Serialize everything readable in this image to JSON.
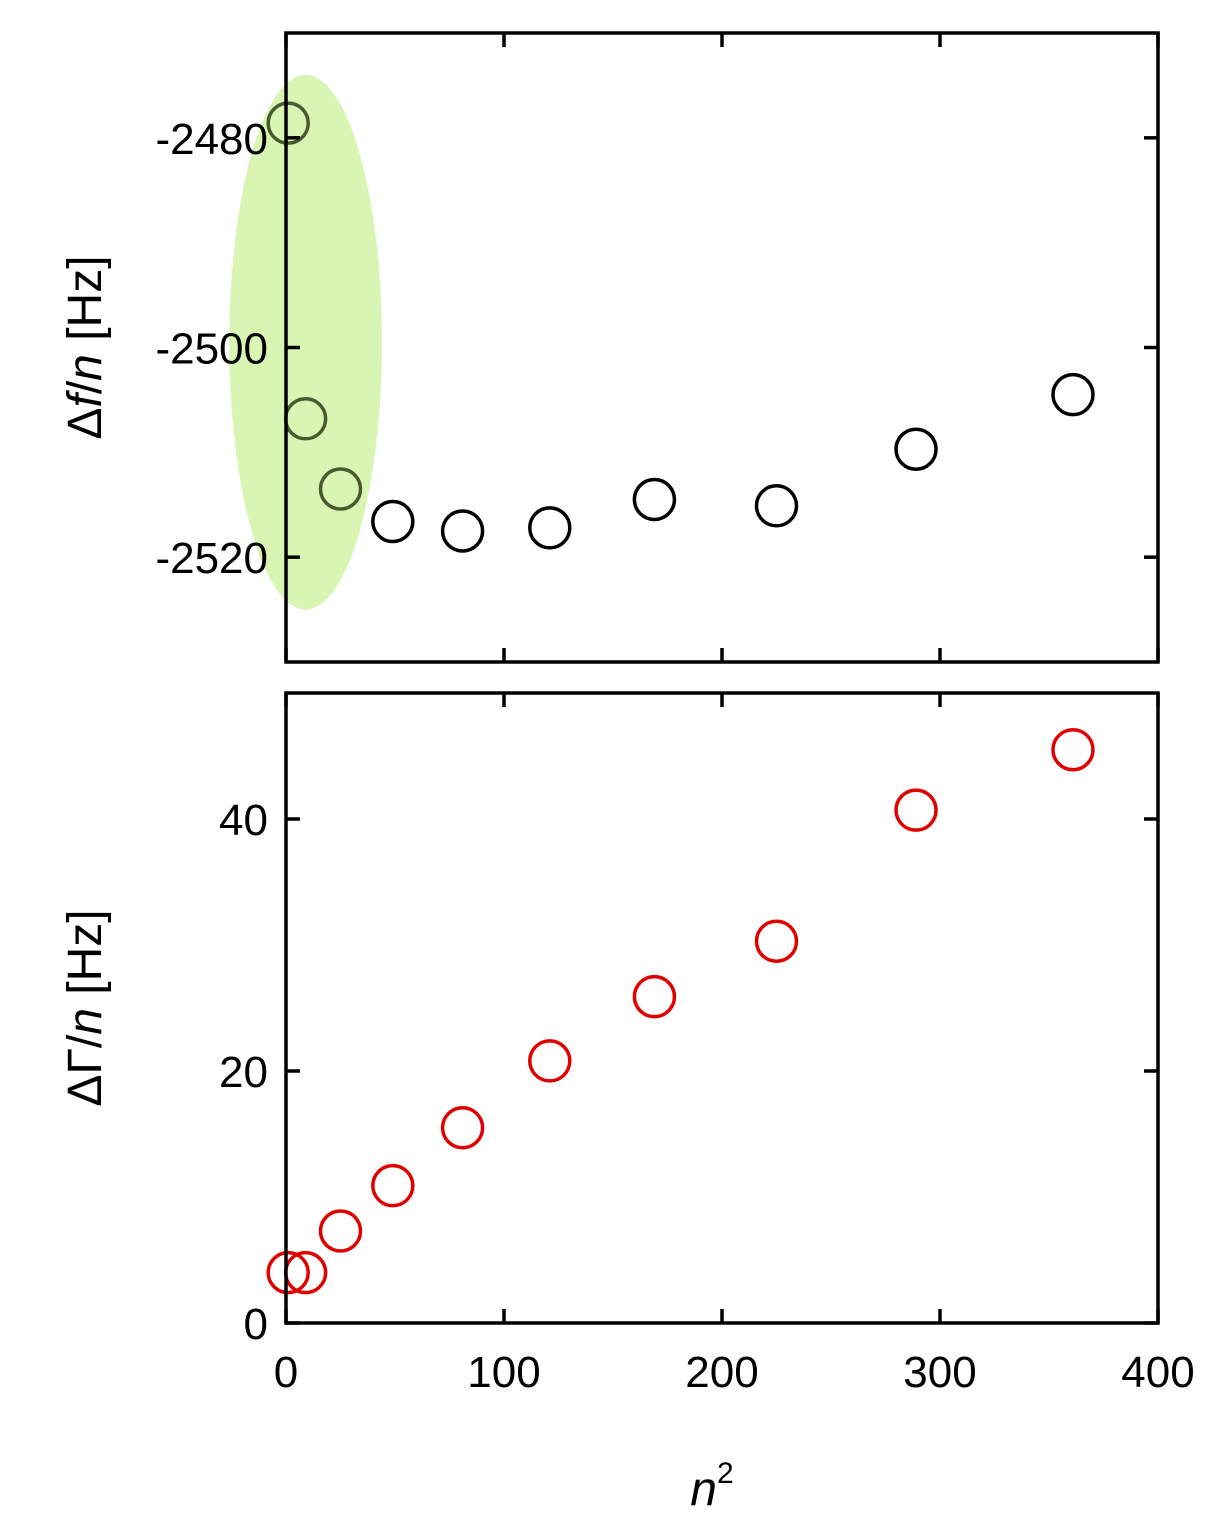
{
  "chart_data": [
    {
      "type": "scatter",
      "panel": "top",
      "ylabel_parts": [
        "Δ",
        "f",
        "/",
        "n",
        " [Hz]"
      ],
      "xlim": [
        0,
        400
      ],
      "ylim": [
        -2530,
        -2470
      ],
      "yticks": [
        -2480,
        -2500,
        -2520
      ],
      "ytick_labels": [
        "-2480",
        "-2500",
        "-2520"
      ],
      "xticks": [
        0,
        100,
        200,
        300,
        400
      ],
      "marker_color": "#000000",
      "highlight": {
        "color": "#d9f5b3",
        "cx": 9,
        "cy": -2499.5,
        "rx": 35,
        "ry": 25.5
      },
      "series": [
        {
          "x": [
            1,
            9,
            25,
            49,
            81,
            121,
            169,
            225,
            289,
            361
          ],
          "y": [
            -2478.6,
            -2506.8,
            -2513.5,
            -2516.6,
            -2517.5,
            -2517.2,
            -2514.5,
            -2515.1,
            -2509.7,
            -2504.5
          ]
        }
      ]
    },
    {
      "type": "scatter",
      "panel": "bottom",
      "ylabel_parts": [
        "ΔΓ",
        "/",
        "n",
        " [Hz]"
      ],
      "xlabel_parts": [
        "n",
        "2"
      ],
      "xlim": [
        0,
        400
      ],
      "ylim": [
        0,
        50
      ],
      "yticks": [
        0,
        20,
        40
      ],
      "ytick_labels": [
        "0",
        "20",
        "40"
      ],
      "xticks": [
        0,
        100,
        200,
        300,
        400
      ],
      "xtick_labels": [
        "0",
        "100",
        "200",
        "300",
        "400"
      ],
      "marker_color": "#e00000",
      "series": [
        {
          "x": [
            1,
            9,
            25,
            49,
            81,
            121,
            169,
            225,
            289,
            361
          ],
          "y": [
            4.0,
            4.0,
            7.3,
            10.9,
            15.5,
            20.8,
            25.9,
            30.3,
            40.7,
            45.5
          ]
        }
      ]
    }
  ]
}
